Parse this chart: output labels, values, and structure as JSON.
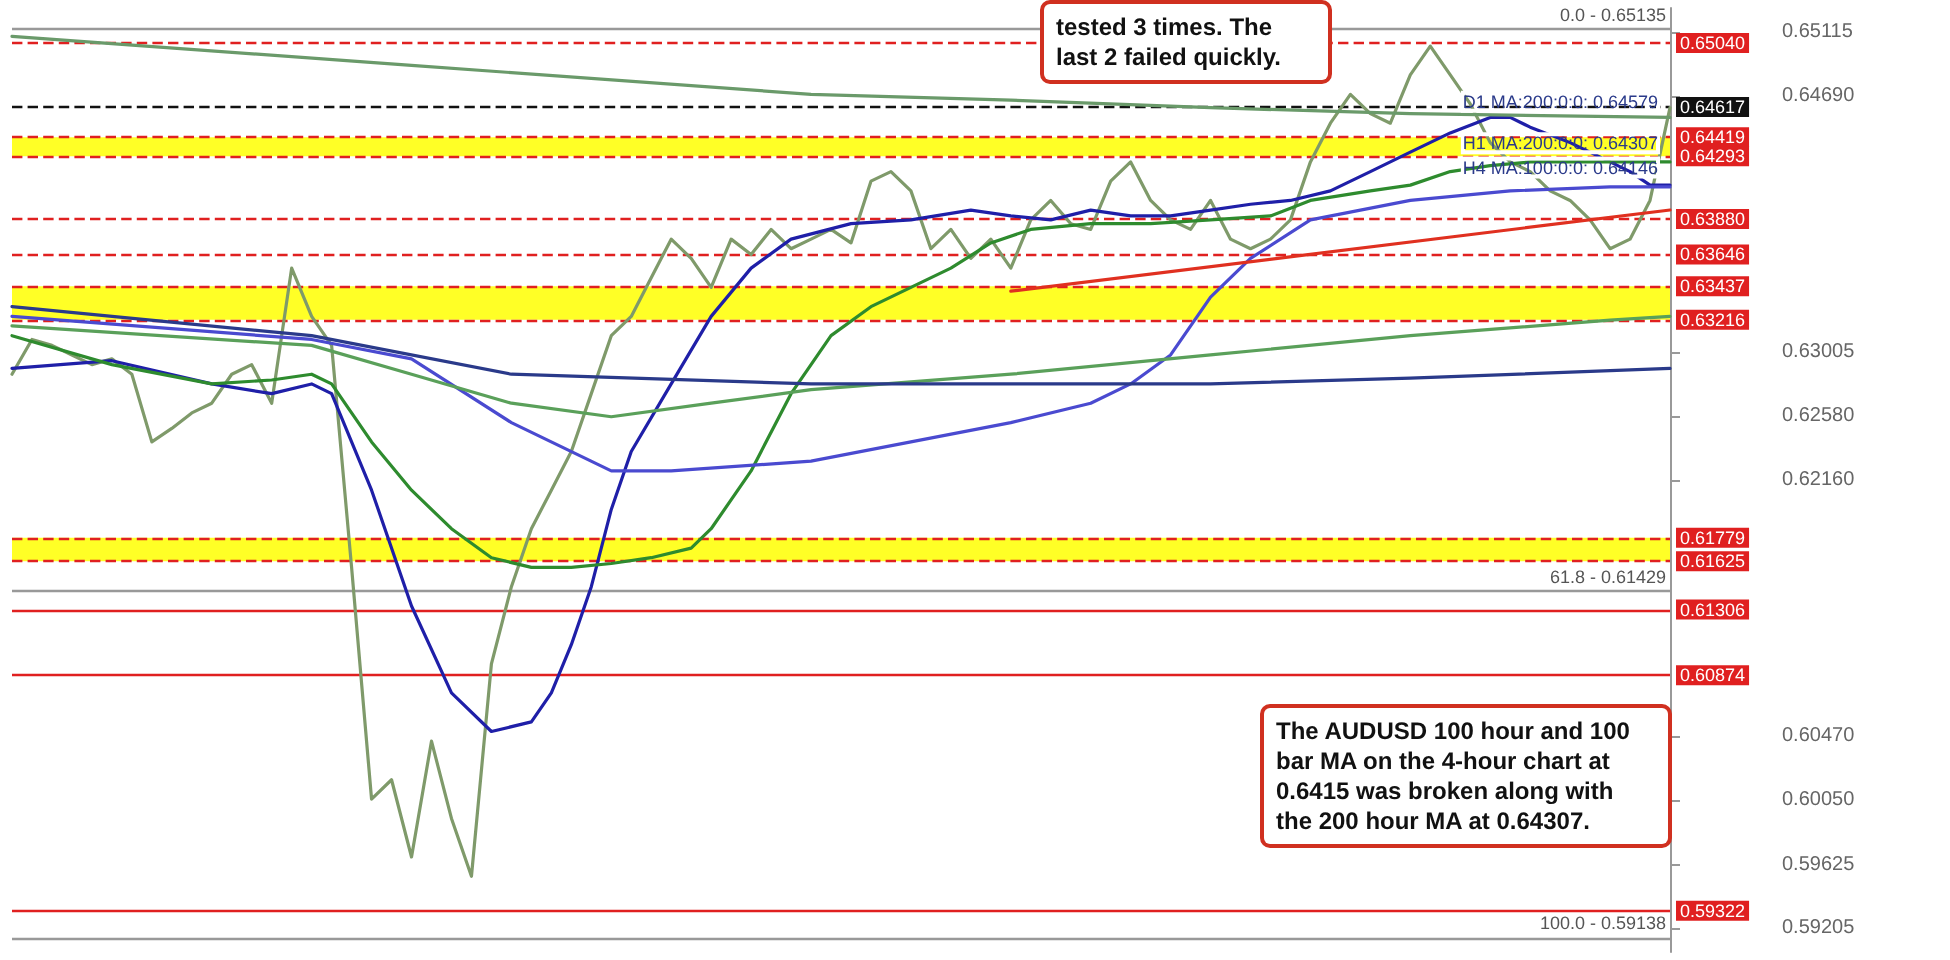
{
  "chart_data": {
    "type": "line",
    "tick_labels": "y",
    "ylim": [
      0.5905,
      0.6527
    ],
    "categories": [
      null,
      null,
      null,
      null,
      null,
      null,
      null,
      null,
      null,
      null,
      null,
      null,
      null,
      null,
      null,
      null,
      null,
      null,
      null,
      null,
      null,
      null,
      null,
      null,
      null,
      null,
      null,
      null,
      null,
      null,
      null,
      null,
      null,
      null,
      null,
      null,
      null,
      null,
      null,
      null,
      null,
      null,
      null,
      null,
      null,
      null,
      null,
      null,
      null,
      null,
      null,
      null,
      null,
      null,
      null,
      null,
      null,
      null,
      null,
      null,
      null,
      null,
      null,
      null,
      null,
      null,
      null,
      null,
      null,
      null,
      null,
      null,
      null,
      null,
      null,
      null,
      null,
      null,
      null,
      null,
      null,
      null,
      null,
      null
    ],
    "yticks": [
      {
        "value": 0.65115,
        "label": "0.65115"
      },
      {
        "value": 0.6469,
        "label": "0.64690"
      },
      {
        "value": 0.63005,
        "label": "0.63005"
      },
      {
        "value": 0.6258,
        "label": "0.62580"
      },
      {
        "value": 0.6216,
        "label": "0.62160"
      },
      {
        "value": 0.6047,
        "label": "0.60470"
      },
      {
        "value": 0.6005,
        "label": "0.60050"
      },
      {
        "value": 0.59625,
        "label": "0.59625"
      },
      {
        "value": 0.59205,
        "label": "0.59205"
      }
    ],
    "series": [
      {
        "color": "#7f9a6a",
        "values": [
          0.62857,
          0.63086,
          0.63047,
          0.62984,
          0.6292,
          0.62958,
          0.62857,
          0.62411,
          0.625,
          0.62602,
          0.62666,
          0.62857,
          0.6292,
          0.62666,
          0.63556,
          0.63238,
          0.63047,
          0.61584,
          0.60057,
          0.60185,
          0.59676,
          0.60439,
          0.5993,
          0.59549,
          0.60948,
          0.61457,
          0.61839,
          0.62093,
          0.62348,
          0.62729,
          0.63111,
          0.63238,
          0.63493,
          0.63747,
          0.6362,
          0.63429,
          0.63747,
          0.63646,
          0.63811,
          0.63684,
          0.63747,
          0.63811,
          0.63722,
          0.64129,
          0.64192,
          0.64065,
          0.63684,
          0.63811,
          0.6362,
          0.63747,
          0.63556,
          0.63874,
          0.64002,
          0.63849,
          0.63811,
          0.64129,
          0.64256,
          0.64002,
          0.63874,
          0.63811,
          0.64002,
          0.63747,
          0.63684,
          0.63747,
          0.63874,
          0.64256,
          0.64511,
          0.64701,
          0.64574,
          0.64511,
          0.64829,
          0.65019,
          0.64829,
          0.64638,
          0.64383,
          0.64256,
          0.64192,
          0.64065,
          0.64002,
          0.63874,
          0.63684,
          0.63747,
          0.64002,
          0.64613
        ]
      },
      {
        "color": "#1f1fa8",
        "values": [
          0.62895,
          null,
          null,
          null,
          null,
          0.62946,
          null,
          null,
          null,
          null,
          0.62793,
          null,
          null,
          0.62729,
          null,
          0.62793,
          0.62729,
          null,
          0.62093,
          null,
          0.6133,
          null,
          0.60757,
          null,
          0.60503,
          null,
          0.60566,
          0.60757,
          0.61075,
          0.61457,
          0.61966,
          0.62348,
          null,
          0.62793,
          null,
          0.63238,
          null,
          0.63556,
          null,
          0.63747,
          null,
          null,
          0.63849,
          null,
          null,
          0.63874,
          null,
          null,
          0.63938,
          null,
          0.639,
          null,
          0.63874,
          null,
          0.63938,
          null,
          0.639,
          null,
          0.639,
          null,
          0.63938,
          null,
          0.63977,
          null,
          0.64002,
          null,
          0.64065,
          null,
          0.64192,
          null,
          0.6432,
          null,
          0.64447,
          null,
          0.64549,
          0.64549,
          0.64485,
          null,
          0.64383,
          null,
          0.64256,
          0.64192,
          0.64103,
          0.64103
        ]
      },
      {
        "color": "#2e8b2e",
        "values": [
          0.63111,
          null,
          null,
          null,
          null,
          0.6292,
          null,
          null,
          null,
          null,
          0.62793,
          null,
          null,
          0.62819,
          null,
          0.62857,
          0.62793,
          null,
          0.62411,
          null,
          0.62093,
          null,
          0.61839,
          null,
          0.61648,
          null,
          0.61584,
          null,
          0.61584,
          null,
          0.6161,
          null,
          0.61648,
          null,
          0.61711,
          0.61839,
          null,
          0.6222,
          null,
          0.62729,
          null,
          0.63111,
          null,
          0.63302,
          null,
          0.63429,
          null,
          0.63556,
          null,
          0.63722,
          null,
          0.63811,
          null,
          null,
          0.63849,
          null,
          null,
          0.63849,
          null,
          null,
          0.63874,
          null,
          null,
          0.639,
          null,
          0.64002,
          null,
          null,
          0.64065,
          null,
          0.64103,
          null,
          0.64192,
          null,
          0.64231,
          null,
          0.64256,
          null,
          0.64256,
          null,
          0.64256,
          null,
          null,
          0.64256
        ]
      },
      {
        "color": "#4a4ad0",
        "values": [
          0.63238,
          null,
          null,
          null,
          null,
          null,
          null,
          null,
          null,
          null,
          null,
          null,
          null,
          null,
          null,
          0.63086,
          null,
          null,
          null,
          null,
          0.62958,
          null,
          null,
          null,
          null,
          0.62538,
          null,
          null,
          null,
          null,
          0.6222,
          null,
          null,
          0.6222,
          null,
          null,
          null,
          null,
          null,
          null,
          0.62284,
          null,
          null,
          null,
          null,
          0.62411,
          null,
          null,
          null,
          null,
          0.62538,
          null,
          null,
          null,
          0.62666,
          null,
          0.62793,
          null,
          0.62984,
          null,
          0.63365,
          null,
          0.6362,
          null,
          null,
          0.63874,
          null,
          null,
          null,
          null,
          0.64002,
          null,
          null,
          null,
          null,
          0.64065,
          null,
          null,
          null,
          null,
          0.64091,
          null,
          null,
          0.64091
        ]
      },
      {
        "color": "#5aa05a",
        "values": [
          0.63175,
          null,
          null,
          null,
          null,
          null,
          null,
          null,
          null,
          null,
          null,
          null,
          null,
          null,
          null,
          0.63047,
          null,
          null,
          null,
          null,
          0.62857,
          null,
          null,
          null,
          null,
          0.62666,
          null,
          null,
          null,
          null,
          0.62577,
          null,
          null,
          null,
          null,
          0.62666,
          null,
          null,
          null,
          null,
          0.62755,
          null,
          null,
          null,
          null,
          null,
          null,
          null,
          null,
          null,
          0.62857,
          null,
          null,
          null,
          null,
          null,
          null,
          null,
          null,
          null,
          0.62984,
          null,
          null,
          null,
          null,
          null,
          null,
          null,
          null,
          null,
          0.63111,
          null,
          null,
          null,
          null,
          null,
          null,
          null,
          null,
          null,
          0.63213,
          null,
          null,
          0.63238
        ]
      },
      {
        "color": "#6a9a6a",
        "values": [
          0.65083,
          null,
          null,
          null,
          null,
          null,
          null,
          null,
          null,
          null,
          null,
          null,
          null,
          null,
          null,
          null,
          null,
          null,
          null,
          null,
          0.64892,
          null,
          null,
          null,
          null,
          null,
          null,
          null,
          null,
          null,
          null,
          null,
          null,
          null,
          null,
          null,
          null,
          null,
          null,
          null,
          0.64701,
          null,
          null,
          null,
          null,
          null,
          null,
          null,
          null,
          null,
          0.64663,
          null,
          null,
          null,
          null,
          null,
          null,
          null,
          null,
          null,
          0.64613,
          null,
          null,
          null,
          null,
          null,
          null,
          null,
          null,
          null,
          0.64574,
          null,
          null,
          null,
          null,
          null,
          null,
          null,
          null,
          null,
          null,
          null,
          null,
          0.64549
        ]
      },
      {
        "color": "#2a3a8a",
        "values": [
          0.63302,
          null,
          null,
          null,
          null,
          null,
          null,
          null,
          null,
          null,
          null,
          null,
          null,
          null,
          null,
          0.63111,
          null,
          null,
          null,
          null,
          null,
          null,
          null,
          null,
          null,
          0.62857,
          null,
          null,
          null,
          null,
          null,
          null,
          null,
          null,
          null,
          null,
          null,
          null,
          null,
          null,
          0.62793,
          null,
          null,
          null,
          null,
          null,
          null,
          null,
          null,
          null,
          null,
          null,
          null,
          null,
          null,
          null,
          null,
          null,
          null,
          null,
          0.62793,
          null,
          null,
          null,
          null,
          null,
          null,
          null,
          null,
          null,
          0.62831,
          null,
          null,
          null,
          null,
          null,
          null,
          null,
          null,
          null,
          null,
          null,
          null,
          0.62895
        ]
      },
      {
        "color": "#e03020",
        "values": [
          null,
          null,
          null,
          null,
          null,
          null,
          null,
          null,
          null,
          null,
          null,
          null,
          null,
          null,
          null,
          null,
          null,
          null,
          null,
          null,
          null,
          null,
          null,
          null,
          null,
          null,
          null,
          null,
          null,
          null,
          null,
          null,
          null,
          null,
          null,
          null,
          null,
          null,
          null,
          null,
          null,
          null,
          null,
          null,
          null,
          null,
          null,
          null,
          null,
          null,
          0.63404,
          null,
          null,
          null,
          null,
          null,
          null,
          null,
          null,
          null,
          null,
          null,
          null,
          null,
          null,
          null,
          null,
          null,
          null,
          null,
          null,
          null,
          null,
          null,
          null,
          null,
          null,
          null,
          null,
          null,
          null,
          null,
          null,
          0.63939
        ]
      }
    ],
    "bands": [
      {
        "axis": "y",
        "from": 0.64293,
        "to": 0.64419,
        "color": "#ffff00"
      },
      {
        "axis": "y",
        "from": 0.63216,
        "to": 0.63437,
        "color": "#ffff00"
      },
      {
        "axis": "y",
        "from": 0.61625,
        "to": 0.61779,
        "color": "#ffff00"
      }
    ],
    "ref_lines": [
      {
        "axis": "y",
        "value": 0.6504,
        "label": "0.65040",
        "color": "#e02020",
        "line_style": "dashed"
      },
      {
        "axis": "y",
        "value": 0.64617,
        "label": "0.64617",
        "color": "#111111",
        "line_style": "dashed"
      },
      {
        "axis": "y",
        "value": 0.64419,
        "label": "0.64419",
        "color": "#e02020",
        "line_style": "dashed"
      },
      {
        "axis": "y",
        "value": 0.64293,
        "label": "0.64293",
        "color": "#e02020",
        "line_style": "dashed"
      },
      {
        "axis": "y",
        "value": 0.6388,
        "label": "0.63880",
        "color": "#e02020",
        "line_style": "dashed"
      },
      {
        "axis": "y",
        "value": 0.63646,
        "label": "0.63646",
        "color": "#e02020",
        "line_style": "dashed"
      },
      {
        "axis": "y",
        "value": 0.63437,
        "label": "0.63437",
        "color": "#e02020",
        "line_style": "dashed"
      },
      {
        "axis": "y",
        "value": 0.63216,
        "label": "0.63216",
        "color": "#e02020",
        "line_style": "dashed"
      },
      {
        "axis": "y",
        "value": 0.61779,
        "label": "0.61779",
        "color": "#e02020",
        "line_style": "dashed"
      },
      {
        "axis": "y",
        "value": 0.61625,
        "label": "0.61625",
        "color": "#e02020",
        "line_style": "dashed"
      },
      {
        "axis": "y",
        "value": 0.61306,
        "label": "0.61306",
        "color": "#e02020",
        "line_style": "solid"
      },
      {
        "axis": "y",
        "value": 0.60874,
        "label": "0.60874",
        "color": "#e02020",
        "line_style": "solid"
      },
      {
        "axis": "y",
        "value": 0.59322,
        "label": "0.59322",
        "color": "#e02020",
        "line_style": "solid"
      },
      {
        "axis": "y",
        "value": 0.65135,
        "color": "#999999",
        "line_style": "solid"
      },
      {
        "axis": "y",
        "value": 0.61429,
        "color": "#999999",
        "line_style": "solid"
      },
      {
        "axis": "y",
        "value": 0.59138,
        "color": "#999999",
        "line_style": "solid"
      }
    ],
    "annotations": [
      "tested 3 times. The last 2 failed quickly.",
      "The AUDUSD 100 hour and 100 bar MA on the 4-hour chart at 0.6415 was broken along with the 200 hour MA at 0.64307.",
      {
        "text": "D1 MA:200:0:0: 0.64579",
        "y": 0.64579
      },
      {
        "text": "H1 MA:200:0:0: 0.64307",
        "y": 0.64307
      },
      {
        "text": "H4 MA:100:0:0: 0.64146",
        "y": 0.64146
      },
      "0.0 - 0.65135",
      "61.8 - 0.61429",
      "100.0 - 0.59138"
    ]
  }
}
